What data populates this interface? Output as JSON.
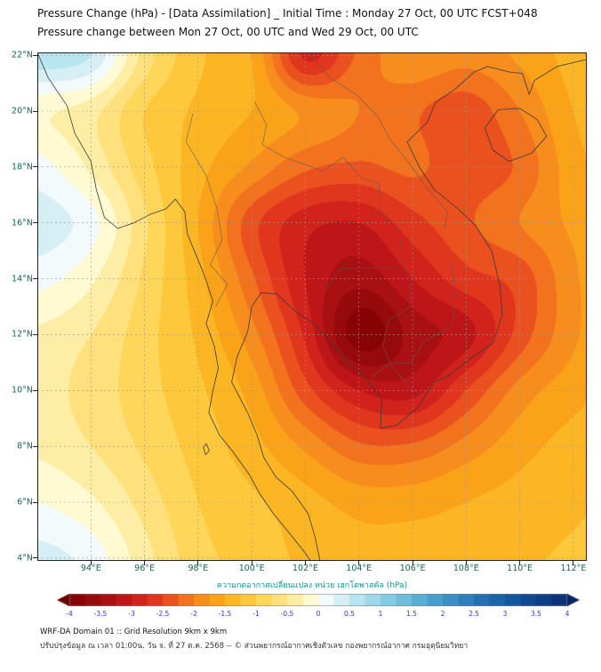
{
  "title": {
    "line1": "Pressure Change (hPa) - [Data Assimilation] _ Initial Time : Monday 27 Oct, 00 UTC FCST+048",
    "line2": "Pressure change between Mon 27 Oct, 00 UTC and Wed 29 Oct, 00 UTC"
  },
  "colors": {
    "title": "#111111",
    "axis_ticks": "#14665a",
    "colorbar_ticks": "#2a3bd6",
    "colorbar_label": "#0d8f96",
    "coastline": "#3a3a3a",
    "border": "#5a5a5a",
    "gridline": "#999999",
    "frame": "#222222"
  },
  "chart_data": {
    "type": "heatmap",
    "title": "Pressure change between Mon 27 Oct, 00 UTC and Wed 29 Oct, 00 UTC",
    "units": "hPa",
    "lon_range": [
      92.0,
      112.5
    ],
    "lat_range": [
      3.9,
      22.1
    ],
    "contour_interval": 0.25,
    "value_range": [
      -4,
      4
    ],
    "axes": {
      "lon_tick_values": [
        94,
        96,
        98,
        100,
        102,
        104,
        106,
        108,
        110,
        112
      ],
      "lon_tick_labels": [
        "94°E",
        "96°E",
        "98°E",
        "100°E",
        "102°E",
        "104°E",
        "106°E",
        "108°E",
        "110°E",
        "112°E"
      ],
      "lat_tick_values": [
        4,
        6,
        8,
        10,
        12,
        14,
        16,
        18,
        20,
        22
      ],
      "lat_tick_labels": [
        "4°N",
        "6°N",
        "8°N",
        "10°N",
        "12°N",
        "14°N",
        "16°N",
        "18°N",
        "20°N",
        "22°N"
      ]
    },
    "grid": {
      "lons": [
        92,
        94,
        96,
        98,
        100,
        102,
        104,
        106,
        108,
        110,
        112,
        114
      ],
      "lats": [
        24,
        22,
        20,
        18,
        16,
        14,
        12,
        10,
        8,
        6,
        4,
        2
      ],
      "values": [
        [
          0.6,
          0.4,
          -0.8,
          -1.2,
          -1.6,
          -2.6,
          -2.4,
          -1.8,
          -1.8,
          -1.6,
          -1.4,
          -1.2
        ],
        [
          0.7,
          0.5,
          -0.6,
          -1.2,
          -1.5,
          -2.8,
          -2.2,
          -1.8,
          -1.9,
          -1.7,
          -1.4,
          -1.2
        ],
        [
          -0.2,
          -0.4,
          -1.0,
          -1.3,
          -1.5,
          -1.8,
          -2.0,
          -2.2,
          -2.4,
          -2.0,
          -1.5,
          -1.3
        ],
        [
          0.1,
          -0.3,
          -0.9,
          -1.4,
          -1.8,
          -2.2,
          -2.3,
          -2.2,
          -2.4,
          -2.2,
          -1.6,
          -1.4
        ],
        [
          0.4,
          0.1,
          -0.7,
          -1.5,
          -2.4,
          -2.9,
          -3.0,
          -2.6,
          -2.3,
          -2.0,
          -1.7,
          -1.5
        ],
        [
          0.1,
          -0.2,
          -0.8,
          -1.4,
          -2.2,
          -3.0,
          -3.4,
          -3.0,
          -2.6,
          -2.4,
          -1.8,
          -1.5
        ],
        [
          -0.3,
          -0.5,
          -0.9,
          -1.3,
          -1.9,
          -2.8,
          -3.9,
          -3.4,
          -3.1,
          -2.4,
          -1.8,
          -1.5
        ],
        [
          -0.4,
          -0.6,
          -0.9,
          -1.2,
          -1.6,
          -2.4,
          -3.0,
          -3.1,
          -2.5,
          -1.9,
          -1.6,
          -1.4
        ],
        [
          -0.3,
          -0.5,
          -0.8,
          -1.1,
          -1.4,
          -1.8,
          -2.2,
          -2.2,
          -1.9,
          -1.6,
          -1.4,
          -1.3
        ],
        [
          0.0,
          -0.2,
          -0.6,
          -1.0,
          -1.2,
          -1.4,
          -1.6,
          -1.6,
          -1.5,
          -1.4,
          -1.3,
          -1.2
        ],
        [
          0.35,
          0.15,
          -0.4,
          -0.9,
          -1.1,
          -1.3,
          -1.4,
          -1.4,
          -1.4,
          -1.3,
          -1.2,
          -1.1
        ],
        [
          0.45,
          0.25,
          -0.3,
          -0.8,
          -1.0,
          -1.2,
          -1.3,
          -1.3,
          -1.3,
          -1.2,
          -1.1,
          -1.0
        ]
      ]
    },
    "colormap_stops": [
      [
        -4.63,
        "#4a0000"
      ],
      [
        -4.0,
        "#7f0000"
      ],
      [
        -3.5,
        "#9e0d10"
      ],
      [
        -3.0,
        "#c9181a"
      ],
      [
        -2.5,
        "#e8401f"
      ],
      [
        -2.0,
        "#f5821e"
      ],
      [
        -1.5,
        "#fcae17"
      ],
      [
        -1.0,
        "#fdd049"
      ],
      [
        -0.5,
        "#fee78e"
      ],
      [
        -0.12,
        "#fffad2"
      ],
      [
        0.0,
        "#ffffff"
      ],
      [
        0.3,
        "#dff2f6"
      ],
      [
        0.7,
        "#aee2ee"
      ],
      [
        1.2,
        "#7cc8e0"
      ],
      [
        1.8,
        "#4ba3cf"
      ],
      [
        2.5,
        "#2678b8"
      ],
      [
        3.2,
        "#11529a"
      ],
      [
        4.0,
        "#0a2e72"
      ],
      [
        4.63,
        "#071b4d"
      ]
    ],
    "map_outlines": {
      "coast": [
        [
          [
            92.0,
            22.1
          ],
          [
            92.4,
            21.2
          ],
          [
            93.1,
            20.2
          ],
          [
            93.4,
            19.2
          ],
          [
            94.0,
            18.2
          ],
          [
            94.2,
            17.2
          ],
          [
            94.5,
            16.2
          ],
          [
            95.0,
            15.8
          ],
          [
            95.6,
            16.0
          ],
          [
            96.2,
            16.3
          ],
          [
            96.8,
            16.5
          ],
          [
            97.15,
            16.85
          ],
          [
            97.5,
            16.4
          ],
          [
            97.6,
            15.6
          ],
          [
            97.9,
            14.9
          ],
          [
            98.2,
            14.2
          ],
          [
            98.55,
            13.2
          ],
          [
            98.3,
            12.4
          ],
          [
            98.6,
            11.6
          ],
          [
            98.75,
            10.8
          ],
          [
            98.55,
            10.0
          ],
          [
            98.4,
            9.2
          ],
          [
            98.8,
            8.4
          ],
          [
            99.3,
            7.8
          ],
          [
            99.9,
            7.0
          ],
          [
            100.3,
            6.3
          ],
          [
            100.8,
            5.6
          ],
          [
            101.4,
            4.9
          ],
          [
            101.9,
            4.3
          ],
          [
            102.2,
            3.9
          ]
        ],
        [
          [
            102.55,
            3.9
          ],
          [
            102.35,
            4.8
          ],
          [
            102.1,
            5.6
          ],
          [
            101.5,
            6.4
          ],
          [
            100.9,
            6.9
          ],
          [
            100.45,
            7.6
          ],
          [
            100.2,
            8.4
          ],
          [
            99.85,
            9.2
          ],
          [
            99.25,
            10.3
          ],
          [
            99.45,
            11.2
          ],
          [
            99.85,
            12.1
          ],
          [
            100.0,
            13.0
          ],
          [
            100.35,
            13.5
          ],
          [
            100.95,
            13.45
          ],
          [
            101.6,
            12.85
          ],
          [
            102.3,
            12.4
          ],
          [
            102.8,
            11.9
          ],
          [
            103.5,
            11.1
          ],
          [
            104.2,
            10.5
          ],
          [
            104.85,
            9.7
          ],
          [
            104.8,
            8.65
          ],
          [
            105.4,
            8.75
          ],
          [
            106.2,
            9.4
          ],
          [
            106.8,
            10.3
          ],
          [
            107.3,
            10.5
          ],
          [
            108.1,
            11.1
          ],
          [
            109.0,
            11.7
          ],
          [
            109.35,
            12.7
          ],
          [
            109.25,
            13.8
          ],
          [
            108.95,
            15.0
          ],
          [
            108.35,
            15.9
          ],
          [
            107.7,
            16.5
          ],
          [
            106.8,
            17.2
          ],
          [
            106.25,
            18.0
          ],
          [
            105.8,
            18.9
          ],
          [
            106.55,
            19.6
          ],
          [
            106.85,
            20.3
          ],
          [
            107.6,
            20.8
          ],
          [
            108.3,
            21.4
          ],
          [
            108.8,
            21.6
          ],
          [
            109.6,
            21.4
          ],
          [
            110.1,
            21.35
          ],
          [
            110.35,
            20.6
          ],
          [
            110.55,
            21.1
          ],
          [
            111.4,
            21.6
          ],
          [
            112.5,
            21.85
          ]
        ]
      ],
      "islands": [
        [
          [
            108.7,
            19.4
          ],
          [
            109.2,
            20.05
          ],
          [
            110.0,
            20.1
          ],
          [
            110.65,
            19.7
          ],
          [
            111.0,
            19.1
          ],
          [
            110.45,
            18.5
          ],
          [
            109.6,
            18.2
          ],
          [
            109.0,
            18.6
          ],
          [
            108.7,
            19.4
          ]
        ],
        [
          [
            98.3,
            8.1
          ],
          [
            98.42,
            7.85
          ],
          [
            98.28,
            7.7
          ],
          [
            98.2,
            7.95
          ],
          [
            98.3,
            8.1
          ]
        ]
      ],
      "borders": [
        [
          [
            97.8,
            19.9
          ],
          [
            97.55,
            18.9
          ],
          [
            98.3,
            17.7
          ],
          [
            98.7,
            16.5
          ],
          [
            98.9,
            15.4
          ],
          [
            98.45,
            14.5
          ],
          [
            99.1,
            13.8
          ],
          [
            98.65,
            13.0
          ]
        ],
        [
          [
            100.1,
            20.35
          ],
          [
            100.55,
            19.5
          ],
          [
            100.4,
            18.8
          ],
          [
            101.2,
            18.35
          ],
          [
            102.1,
            18.05
          ],
          [
            102.65,
            17.85
          ],
          [
            103.4,
            18.35
          ],
          [
            104.1,
            17.6
          ],
          [
            104.75,
            17.4
          ],
          [
            104.8,
            16.4
          ],
          [
            105.6,
            15.7
          ],
          [
            105.5,
            14.8
          ],
          [
            105.9,
            13.9
          ],
          [
            105.9,
            13.0
          ],
          [
            105.1,
            12.5
          ],
          [
            104.9,
            11.6
          ],
          [
            105.2,
            10.9
          ],
          [
            105.9,
            10.1
          ],
          [
            106.4,
            9.7
          ]
        ],
        [
          [
            102.15,
            22.1
          ],
          [
            102.9,
            21.2
          ],
          [
            103.9,
            20.6
          ],
          [
            104.7,
            19.8
          ],
          [
            105.15,
            19.0
          ],
          [
            105.9,
            18.1
          ],
          [
            106.5,
            17.3
          ],
          [
            107.3,
            16.4
          ],
          [
            107.2,
            15.8
          ]
        ],
        [
          [
            107.45,
            14.6
          ],
          [
            107.6,
            13.5
          ],
          [
            107.5,
            12.3
          ],
          [
            106.4,
            11.75
          ],
          [
            105.95,
            11.0
          ],
          [
            105.1,
            10.95
          ],
          [
            104.45,
            10.45
          ]
        ],
        [
          [
            102.75,
            13.6
          ],
          [
            103.3,
            14.35
          ],
          [
            104.6,
            14.4
          ],
          [
            105.5,
            14.4
          ]
        ]
      ]
    }
  },
  "colorbar": {
    "label": "ความกดอากาศเปลี่ยนแปลง หน่วย เฮกโตพาสคัล (hPa)",
    "min": -4,
    "max": 4,
    "step": 0.25,
    "tick_labels": [
      "-4",
      "-3.5",
      "-3",
      "-2.5",
      "-2",
      "-1.5",
      "-1",
      "-0.5",
      "0",
      "0.5",
      "1",
      "1.5",
      "2",
      "2.5",
      "3",
      "3.5",
      "4"
    ]
  },
  "footer": {
    "line1": "WRF-DA Domain 01 :: Grid Resolution 9km x 9km",
    "line2": "ปรับปรุงข้อมูล ณ เวลา 01:00น. วัน จ. ที่ 27 ต.ค. 2568 -- © ส่วนพยากรณ์อากาศเชิงตัวเลข กองพยากรณ์อากาศ กรมอุตุนิยมวิทยา"
  }
}
